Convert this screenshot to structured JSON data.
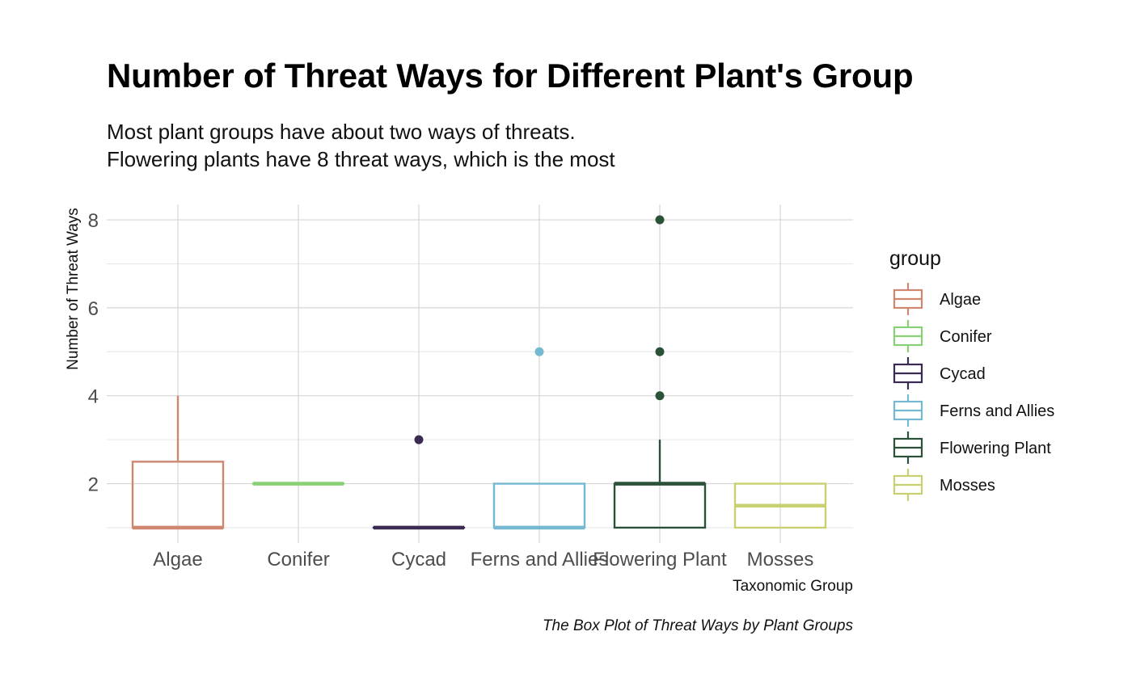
{
  "chart_data": {
    "type": "boxplot",
    "title": "Number of Threat Ways for Different Plant's Group",
    "subtitle": [
      "Most plant groups have about two ways of threats.",
      "Flowering plants have 8 threat ways, which is the most"
    ],
    "xlabel": "Taxonomic Group",
    "ylabel": "Number of Threat Ways",
    "caption": "The Box Plot of Threat Ways by Plant Groups",
    "ylim": [
      0.65,
      8.35
    ],
    "yticks": [
      2,
      4,
      6,
      8
    ],
    "y_minor_ticks": [
      1,
      3,
      5,
      7
    ],
    "grid": true,
    "legend_title": "group",
    "legend_position": "right",
    "categories": [
      "Algae",
      "Conifer",
      "Cycad",
      "Ferns and Allies",
      "Flowering Plant",
      "Mosses"
    ],
    "series": [
      {
        "name": "Algae",
        "color": "#d08770",
        "min": 1,
        "q1": 1,
        "median": 1,
        "q3": 2.5,
        "max": 4,
        "outliers": []
      },
      {
        "name": "Conifer",
        "color": "#88d174",
        "min": 2,
        "q1": 2,
        "median": 2,
        "q3": 2,
        "max": 2,
        "outliers": []
      },
      {
        "name": "Cycad",
        "color": "#3b2a52",
        "min": 1,
        "q1": 1,
        "median": 1,
        "q3": 1,
        "max": 1,
        "outliers": [
          3
        ]
      },
      {
        "name": "Ferns and Allies",
        "color": "#74b8d1",
        "min": 1,
        "q1": 1,
        "median": 1,
        "q3": 2,
        "max": 2,
        "outliers": [
          5
        ]
      },
      {
        "name": "Flowering Plant",
        "color": "#2b5239",
        "min": 1,
        "q1": 1,
        "median": 2,
        "q3": 2,
        "max": 3,
        "outliers": [
          4,
          5,
          8
        ]
      },
      {
        "name": "Mosses",
        "color": "#c8d070",
        "min": 1,
        "q1": 1,
        "median": 1.5,
        "q3": 2,
        "max": 2,
        "outliers": []
      }
    ]
  }
}
